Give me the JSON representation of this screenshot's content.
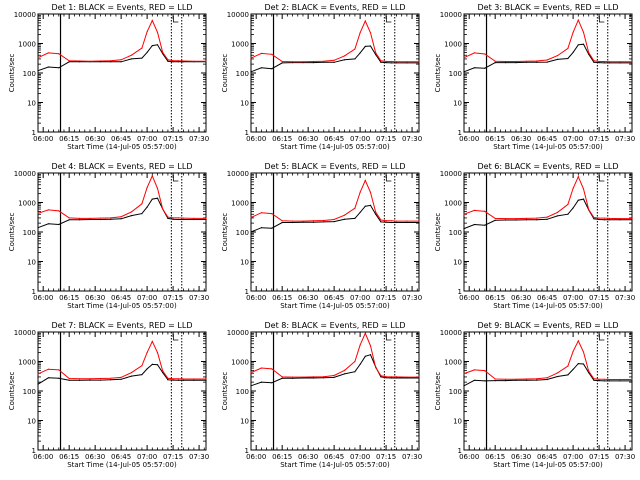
{
  "figure": {
    "xlabel": "Start Time (14-Jul-05 05:57:00)",
    "ylabel": "Counts/sec",
    "x_ticks": [
      "06:00",
      "06:15",
      "06:30",
      "06:45",
      "07:00",
      "07:15",
      "07:30"
    ],
    "y_ticks": [
      "1",
      "10",
      "100",
      "1000",
      "10000"
    ],
    "colors": {
      "events": "#000000",
      "lld": "#ff0000",
      "axes": "#000000"
    }
  },
  "chart_data": [
    {
      "type": "line",
      "title": "Det 1: BLACK = Events, RED = LLD",
      "xlim_minutes": [
        0,
        97
      ],
      "ylim": [
        1,
        10000
      ],
      "yscale": "log",
      "x_minutes": [
        0,
        6,
        12,
        18,
        24,
        30,
        36,
        42,
        48,
        54,
        60,
        63,
        66,
        69,
        72,
        75,
        78,
        81,
        84,
        90,
        97
      ],
      "markers": [
        13,
        77,
        83
      ],
      "series": [
        {
          "name": "BLACK = Events",
          "color": "#000000",
          "values": [
            120,
            160,
            150,
            240,
            240,
            240,
            240,
            240,
            240,
            300,
            320,
            500,
            850,
            900,
            450,
            250,
            240,
            240,
            240,
            240,
            240
          ]
        },
        {
          "name": "RED = LLD",
          "color": "#ff0000",
          "values": [
            330,
            480,
            450,
            260,
            255,
            250,
            255,
            260,
            280,
            400,
            700,
            2500,
            6000,
            2400,
            500,
            280,
            260,
            260,
            255,
            250,
            250
          ]
        }
      ]
    },
    {
      "type": "line",
      "title": "Det 2: BLACK = Events, RED = LLD",
      "xlim_minutes": [
        0,
        97
      ],
      "ylim": [
        1,
        10000
      ],
      "yscale": "log",
      "x_minutes": [
        0,
        6,
        12,
        18,
        24,
        30,
        36,
        42,
        48,
        54,
        60,
        63,
        66,
        69,
        72,
        75,
        78,
        81,
        84,
        90,
        97
      ],
      "markers": [
        13,
        77,
        83
      ],
      "series": [
        {
          "name": "BLACK = Events",
          "color": "#000000",
          "values": [
            110,
            150,
            140,
            220,
            225,
            225,
            225,
            230,
            230,
            280,
            300,
            480,
            800,
            820,
            420,
            230,
            225,
            220,
            220,
            220,
            220
          ]
        },
        {
          "name": "RED = LLD",
          "color": "#ff0000",
          "values": [
            320,
            460,
            430,
            245,
            240,
            240,
            245,
            250,
            270,
            380,
            650,
            2300,
            5800,
            2300,
            480,
            260,
            245,
            245,
            240,
            240,
            240
          ]
        }
      ]
    },
    {
      "type": "line",
      "title": "Det 3: BLACK = Events, RED = LLD",
      "xlim_minutes": [
        0,
        97
      ],
      "ylim": [
        1,
        10000
      ],
      "yscale": "log",
      "x_minutes": [
        0,
        6,
        12,
        18,
        24,
        30,
        36,
        42,
        48,
        54,
        60,
        63,
        66,
        69,
        72,
        75,
        78,
        81,
        84,
        90,
        97
      ],
      "markers": [
        13,
        77,
        83
      ],
      "series": [
        {
          "name": "BLACK = Events",
          "color": "#000000",
          "values": [
            110,
            150,
            145,
            225,
            225,
            225,
            230,
            230,
            235,
            290,
            310,
            500,
            900,
            950,
            430,
            230,
            225,
            220,
            220,
            220,
            220
          ]
        },
        {
          "name": "RED = LLD",
          "color": "#ff0000",
          "values": [
            330,
            480,
            440,
            250,
            245,
            245,
            250,
            255,
            275,
            390,
            680,
            2400,
            6200,
            2400,
            490,
            260,
            245,
            245,
            240,
            240,
            240
          ]
        }
      ]
    },
    {
      "type": "line",
      "title": "Det 4: BLACK = Events, RED = LLD",
      "xlim_minutes": [
        0,
        97
      ],
      "ylim": [
        1,
        10000
      ],
      "yscale": "log",
      "x_minutes": [
        0,
        6,
        12,
        18,
        24,
        30,
        36,
        42,
        48,
        54,
        60,
        63,
        66,
        69,
        72,
        75,
        78,
        81,
        84,
        90,
        97
      ],
      "markers": [
        13,
        77,
        83
      ],
      "series": [
        {
          "name": "BLACK = Events",
          "color": "#000000",
          "values": [
            140,
            190,
            180,
            260,
            260,
            265,
            265,
            270,
            280,
            360,
            420,
            700,
            1300,
            1400,
            600,
            290,
            270,
            265,
            265,
            265,
            265
          ]
        },
        {
          "name": "RED = LLD",
          "color": "#ff0000",
          "values": [
            430,
            560,
            520,
            300,
            290,
            290,
            295,
            300,
            330,
            480,
            900,
            3200,
            8000,
            3000,
            600,
            320,
            300,
            300,
            295,
            290,
            290
          ]
        }
      ]
    },
    {
      "type": "line",
      "title": "Det 5: BLACK = Events, RED = LLD",
      "xlim_minutes": [
        0,
        97
      ],
      "ylim": [
        1,
        10000
      ],
      "yscale": "log",
      "x_minutes": [
        0,
        6,
        12,
        18,
        24,
        30,
        36,
        42,
        48,
        54,
        60,
        63,
        66,
        69,
        72,
        75,
        78,
        81,
        84,
        90,
        97
      ],
      "markers": [
        13,
        77,
        83
      ],
      "series": [
        {
          "name": "BLACK = Events",
          "color": "#000000",
          "values": [
            100,
            140,
            135,
            210,
            210,
            215,
            215,
            220,
            225,
            270,
            290,
            460,
            750,
            800,
            400,
            220,
            215,
            210,
            210,
            210,
            210
          ]
        },
        {
          "name": "RED = LLD",
          "color": "#ff0000",
          "values": [
            310,
            450,
            420,
            240,
            235,
            235,
            240,
            245,
            265,
            370,
            640,
            2200,
            5600,
            2200,
            470,
            255,
            240,
            240,
            235,
            235,
            235
          ]
        }
      ]
    },
    {
      "type": "line",
      "title": "Det 6: BLACK = Events, RED = LLD",
      "xlim_minutes": [
        0,
        97
      ],
      "ylim": [
        1,
        10000
      ],
      "yscale": "log",
      "x_minutes": [
        0,
        6,
        12,
        18,
        24,
        30,
        36,
        42,
        48,
        54,
        60,
        63,
        66,
        69,
        72,
        75,
        78,
        81,
        84,
        90,
        97
      ],
      "markers": [
        13,
        77,
        83
      ],
      "series": [
        {
          "name": "BLACK = Events",
          "color": "#000000",
          "values": [
            130,
            180,
            170,
            250,
            255,
            255,
            260,
            260,
            270,
            350,
            400,
            650,
            1200,
            1300,
            560,
            280,
            265,
            260,
            260,
            260,
            260
          ]
        },
        {
          "name": "RED = LLD",
          "color": "#ff0000",
          "values": [
            400,
            540,
            500,
            290,
            285,
            285,
            290,
            295,
            320,
            460,
            860,
            3000,
            7500,
            2900,
            580,
            310,
            295,
            295,
            290,
            285,
            285
          ]
        }
      ]
    },
    {
      "type": "line",
      "title": "Det 7: BLACK = Events, RED = LLD",
      "xlim_minutes": [
        0,
        97
      ],
      "ylim": [
        1,
        10000
      ],
      "yscale": "log",
      "x_minutes": [
        0,
        6,
        12,
        18,
        24,
        30,
        36,
        42,
        48,
        54,
        60,
        63,
        66,
        69,
        72,
        75,
        78,
        81,
        84,
        90,
        97
      ],
      "markers": [
        13,
        77,
        83
      ],
      "series": [
        {
          "name": "BLACK = Events",
          "color": "#000000",
          "values": [
            170,
            280,
            270,
            230,
            230,
            235,
            235,
            240,
            250,
            320,
            360,
            560,
            800,
            780,
            420,
            240,
            235,
            230,
            230,
            230,
            230
          ]
        },
        {
          "name": "RED = LLD",
          "color": "#ff0000",
          "values": [
            380,
            550,
            520,
            265,
            260,
            260,
            265,
            270,
            290,
            420,
            720,
            2000,
            4800,
            2000,
            480,
            270,
            260,
            260,
            255,
            255,
            255
          ]
        }
      ]
    },
    {
      "type": "line",
      "title": "Det 8: BLACK = Events, RED = LLD",
      "xlim_minutes": [
        0,
        97
      ],
      "ylim": [
        1,
        10000
      ],
      "yscale": "log",
      "x_minutes": [
        0,
        6,
        12,
        18,
        24,
        30,
        36,
        42,
        48,
        54,
        60,
        63,
        66,
        69,
        72,
        75,
        78,
        81,
        84,
        90,
        97
      ],
      "markers": [
        13,
        77,
        83
      ],
      "series": [
        {
          "name": "BLACK = Events",
          "color": "#000000",
          "values": [
            150,
            200,
            190,
            270,
            270,
            275,
            275,
            280,
            290,
            380,
            450,
            800,
            1500,
            1700,
            650,
            300,
            280,
            275,
            275,
            275,
            275
          ]
        },
        {
          "name": "RED = LLD",
          "color": "#ff0000",
          "values": [
            420,
            600,
            560,
            300,
            295,
            295,
            300,
            305,
            335,
            500,
            1000,
            3600,
            9000,
            3400,
            620,
            330,
            305,
            300,
            300,
            295,
            295
          ]
        }
      ]
    },
    {
      "type": "line",
      "title": "Det 9: BLACK = Events, RED = LLD",
      "xlim_minutes": [
        0,
        97
      ],
      "ylim": [
        1,
        10000
      ],
      "yscale": "log",
      "x_minutes": [
        0,
        6,
        12,
        18,
        24,
        30,
        36,
        42,
        48,
        54,
        60,
        63,
        66,
        69,
        72,
        75,
        78,
        81,
        84,
        90,
        97
      ],
      "markers": [
        13,
        77,
        83
      ],
      "series": [
        {
          "name": "BLACK = Events",
          "color": "#000000",
          "values": [
            150,
            230,
            220,
            225,
            225,
            230,
            230,
            235,
            245,
            310,
            350,
            540,
            850,
            820,
            420,
            230,
            225,
            220,
            220,
            220,
            220
          ]
        },
        {
          "name": "RED = LLD",
          "color": "#ff0000",
          "values": [
            390,
            520,
            490,
            255,
            250,
            250,
            255,
            260,
            280,
            410,
            700,
            2200,
            5000,
            2100,
            470,
            260,
            250,
            250,
            245,
            245,
            245
          ]
        }
      ]
    }
  ]
}
